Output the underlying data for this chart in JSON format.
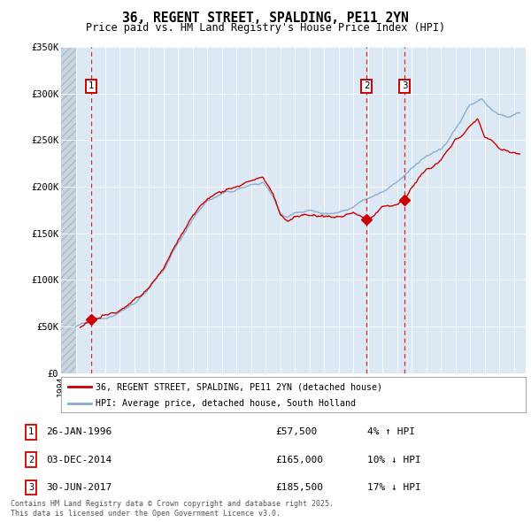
{
  "title": "36, REGENT STREET, SPALDING, PE11 2YN",
  "subtitle": "Price paid vs. HM Land Registry's House Price Index (HPI)",
  "legend_line1": "36, REGENT STREET, SPALDING, PE11 2YN (detached house)",
  "legend_line2": "HPI: Average price, detached house, South Holland",
  "footer": "Contains HM Land Registry data © Crown copyright and database right 2025.\nThis data is licensed under the Open Government Licence v3.0.",
  "sale_dates": [
    1996.07,
    2014.92,
    2017.5
  ],
  "sale_prices": [
    57500,
    165000,
    185500
  ],
  "sale_labels": [
    "1",
    "2",
    "3"
  ],
  "sale_info": [
    {
      "num": "1",
      "date": "26-JAN-1996",
      "price": "£57,500",
      "hpi": "4% ↑ HPI"
    },
    {
      "num": "2",
      "date": "03-DEC-2014",
      "price": "£165,000",
      "hpi": "10% ↓ HPI"
    },
    {
      "num": "3",
      "date": "30-JUN-2017",
      "price": "£185,500",
      "hpi": "17% ↓ HPI"
    }
  ],
  "ylim": [
    0,
    350000
  ],
  "xlim": [
    1994.0,
    2025.8
  ],
  "hatch_end": 1995.0,
  "bg_color": "#dce9f5",
  "line_color_red": "#cc0000",
  "line_color_blue": "#88aacc",
  "grid_color": "#ffffff",
  "yticks": [
    0,
    50000,
    100000,
    150000,
    200000,
    250000,
    300000,
    350000
  ],
  "ylabels": [
    "£0",
    "£50K",
    "£100K",
    "£150K",
    "£200K",
    "£250K",
    "£300K",
    "£350K"
  ]
}
